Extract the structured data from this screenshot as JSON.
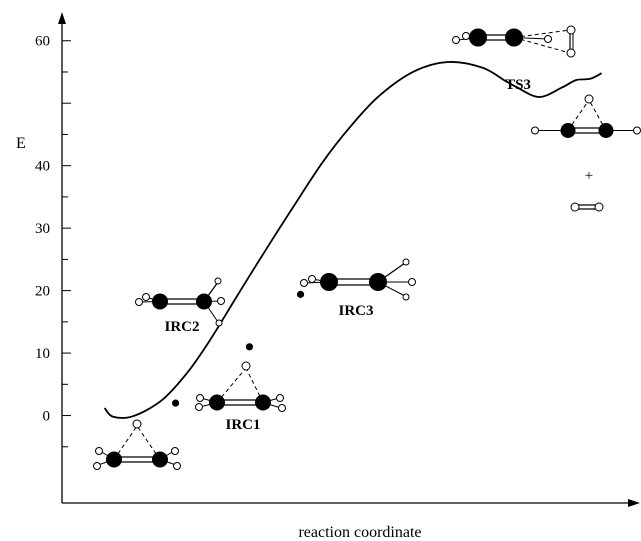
{
  "chart_data": {
    "type": "line",
    "title": "",
    "xlabel": "reaction coordinate",
    "ylabel": "E",
    "yticks": [
      0,
      10,
      20,
      30,
      40,
      60
    ],
    "ylim": [
      -14,
      63
    ],
    "xlim": [
      0,
      100
    ],
    "series": [
      {
        "x": [
          7.5,
          9,
          12.5,
          17.5,
          22,
          26,
          31,
          36,
          41,
          46,
          51,
          56,
          62,
          68,
          74,
          78,
          80,
          84,
          88,
          90.5,
          93,
          95
        ],
        "y": [
          1.2,
          -0.2,
          -0.1,
          2.4,
          6.8,
          12,
          19.4,
          26.7,
          33.8,
          40.7,
          46.5,
          51.3,
          55.1,
          56.6,
          55.7,
          53.6,
          52.6,
          51,
          52.5,
          53.7,
          53.9,
          54.8
        ]
      }
    ],
    "marked_points": [
      {
        "x": 20,
        "y": 2
      },
      {
        "x": 33,
        "y": 11
      },
      {
        "x": 42,
        "y": 19.4
      }
    ],
    "annotations": [
      {
        "label": "IRC1",
        "x": 33,
        "y": -2.5
      },
      {
        "label": "IRC2",
        "x": 20,
        "y": 10.3
      },
      {
        "label": "IRC3",
        "x": 51,
        "y": 16.3
      },
      {
        "label": "TS3",
        "x": 82,
        "y": 44.2
      },
      {
        "label": "+",
        "x": 92,
        "y": 26.5
      }
    ]
  }
}
